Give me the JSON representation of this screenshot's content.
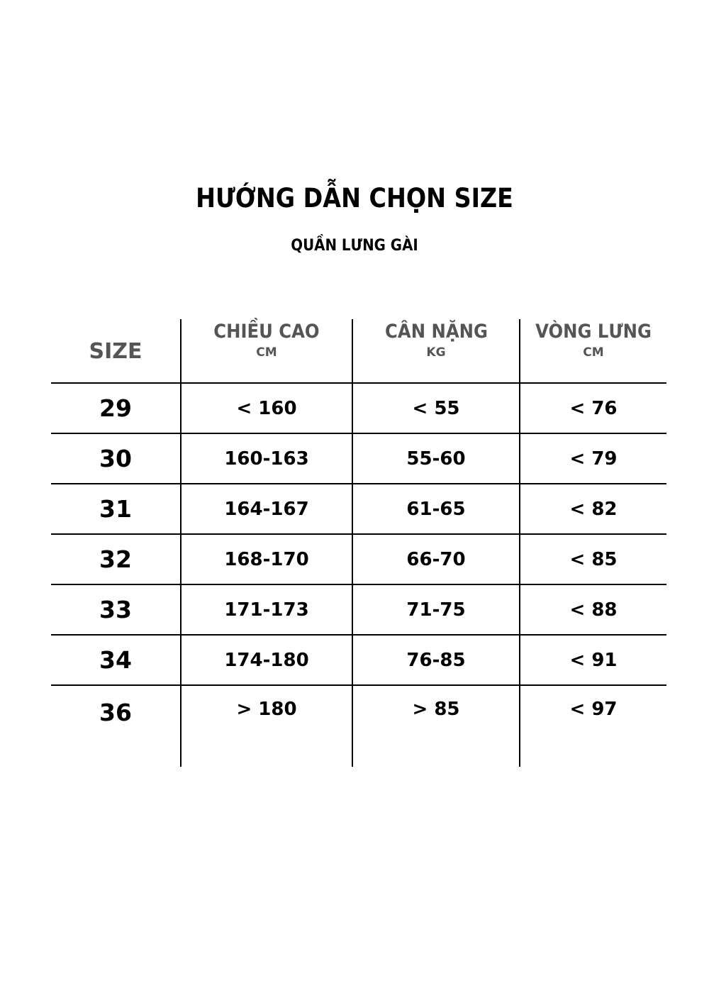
{
  "title": "HƯỚNG DẪN CHỌN SIZE",
  "subtitle": "QUẦN LƯNG GÀI",
  "table": {
    "headers": [
      {
        "label": "SIZE",
        "unit": ""
      },
      {
        "label": "CHIỀU CAO",
        "unit": "CM"
      },
      {
        "label": "CÂN NẶNG",
        "unit": "KG"
      },
      {
        "label": "VÒNG LƯNG",
        "unit": "CM"
      }
    ],
    "rows": [
      [
        "29",
        "< 160",
        "< 55",
        "< 76"
      ],
      [
        "30",
        "160-163",
        "55-60",
        "< 79"
      ],
      [
        "31",
        "164-167",
        "61-65",
        "< 82"
      ],
      [
        "32",
        "168-170",
        "66-70",
        "< 85"
      ],
      [
        "33",
        "171-173",
        "71-75",
        "< 88"
      ],
      [
        "34",
        "174-180",
        "76-85",
        "< 91"
      ],
      [
        "36",
        "> 180",
        "> 85",
        "< 97"
      ]
    ]
  }
}
